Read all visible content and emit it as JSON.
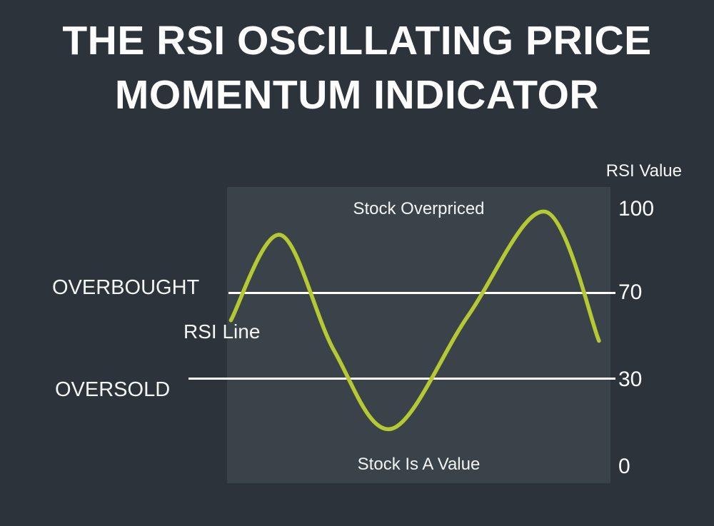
{
  "title": {
    "line1": "THE RSI OSCILLATING PRICE",
    "line2": "MOMENTUM INDICATOR"
  },
  "axis": {
    "title": "RSI Value",
    "ticks": [
      "100",
      "70",
      "30",
      "0"
    ]
  },
  "labels": {
    "overbought": "OVERBOUGHT",
    "rsi_line": "RSI Line",
    "oversold": "OVERSOLD",
    "zone_top": "Stock Overpriced",
    "zone_bottom": "Stock Is A Value"
  },
  "colors": {
    "background": "#2c333a",
    "panel": "#3b434a",
    "line": "#b5c932",
    "threshold_line": "#ffffff",
    "text": "#ffffff"
  },
  "chart_data": {
    "type": "line",
    "title": "THE RSI OSCILLATING PRICE MOMENTUM INDICATOR",
    "xlabel": "",
    "ylabel": "RSI Value",
    "ylim": [
      0,
      100
    ],
    "yticks": [
      100,
      70,
      30,
      0
    ],
    "thresholds": {
      "overbought": 70,
      "oversold": 30
    },
    "zones": [
      {
        "label": "Stock Overpriced",
        "range": [
          70,
          100
        ]
      },
      {
        "label": "Stock Is A Value",
        "range": [
          0,
          30
        ]
      }
    ],
    "series": [
      {
        "name": "RSI Line",
        "x": [
          1,
          14,
          28,
          43,
          63,
          83,
          97
        ],
        "values": [
          57,
          90,
          45,
          15,
          59,
          99,
          49
        ]
      }
    ],
    "legend_position": "none",
    "grid": false
  }
}
